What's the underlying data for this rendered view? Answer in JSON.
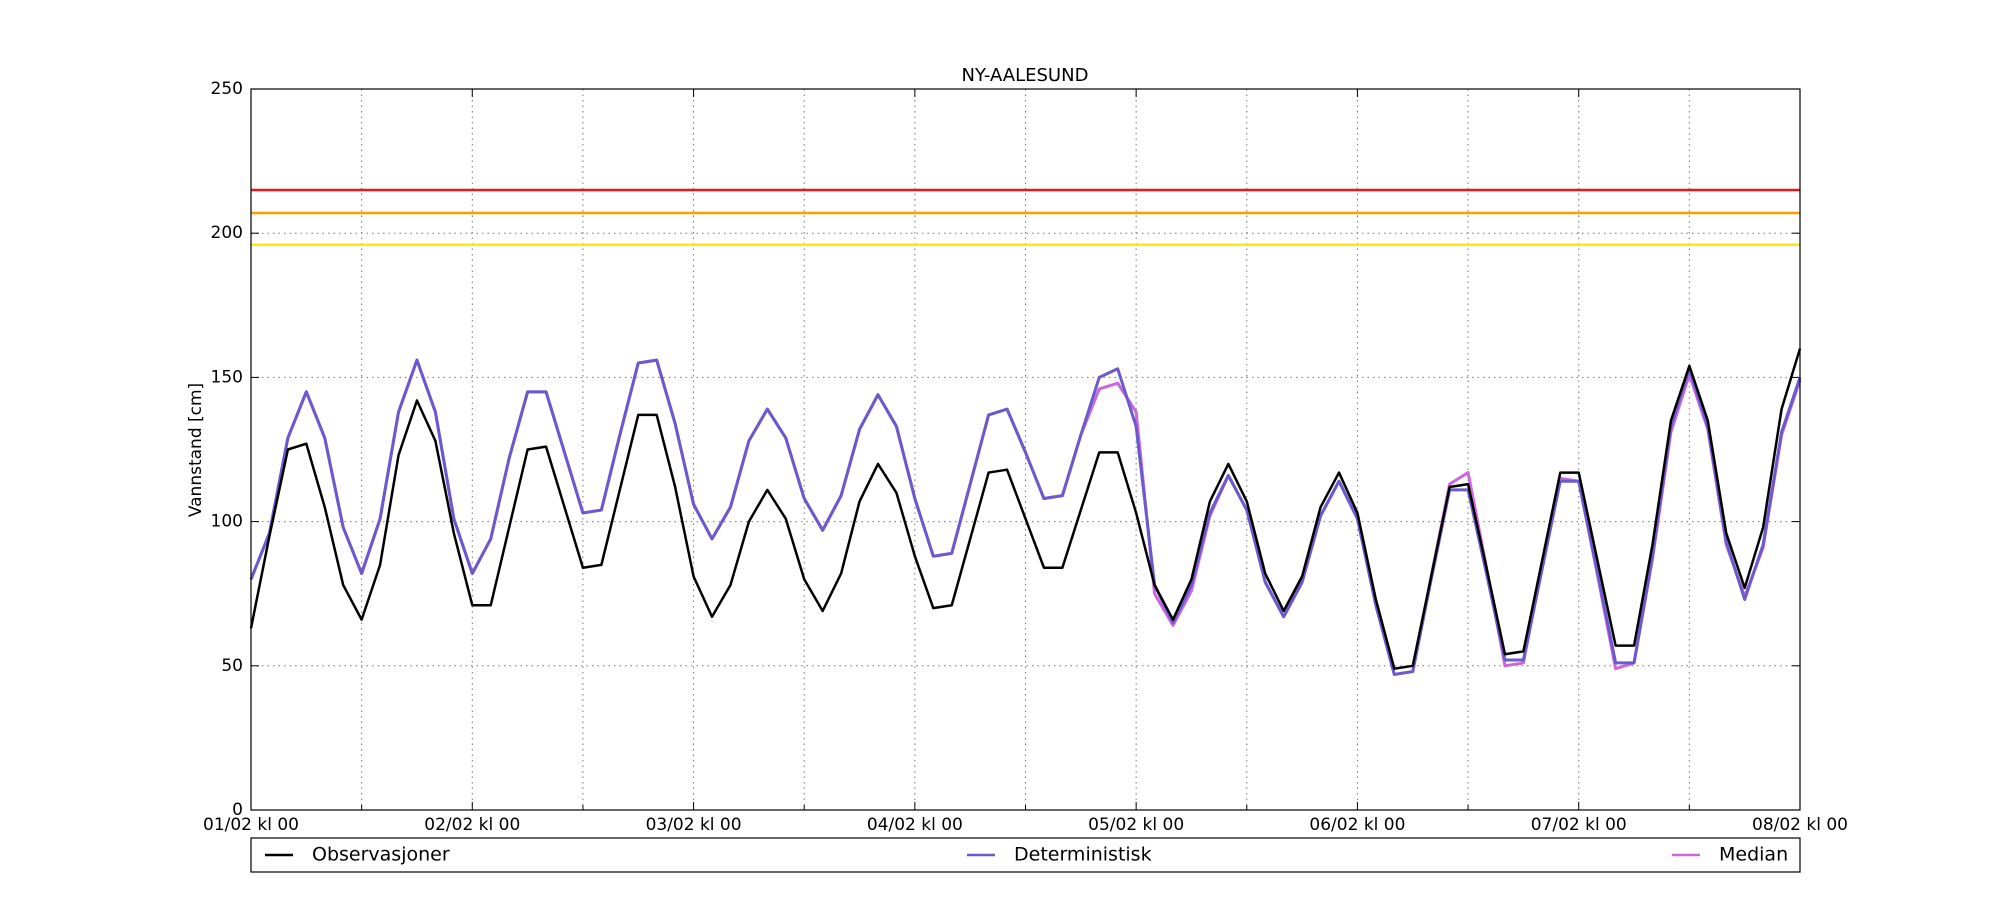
{
  "chart_data": {
    "type": "line",
    "title": "NY-AALESUND",
    "y_label": "Vannstand [cm]",
    "x": [
      0,
      2,
      4,
      6,
      8,
      10,
      12,
      14,
      16,
      18,
      20,
      22,
      24,
      26,
      28,
      30,
      32,
      34,
      36,
      38,
      40,
      42,
      44,
      46,
      48,
      50,
      52,
      54,
      56,
      58,
      60,
      62,
      64,
      66,
      68,
      70,
      72,
      74,
      76,
      78,
      80,
      82,
      84,
      86,
      88,
      90,
      92,
      94,
      96,
      98,
      100,
      102,
      104,
      106,
      108,
      110,
      112,
      114,
      116,
      118,
      120,
      122,
      124,
      126,
      128,
      130,
      132,
      134,
      136,
      138,
      140,
      142,
      144,
      146,
      148,
      150,
      152,
      154,
      156,
      158,
      160,
      162,
      164,
      166,
      168
    ],
    "xlim": [
      0,
      168
    ],
    "xticks": [
      {
        "value": 0,
        "label": "01/02 kl 00"
      },
      {
        "value": 24,
        "label": "02/02 kl 00"
      },
      {
        "value": 48,
        "label": "03/02 kl 00"
      },
      {
        "value": 72,
        "label": "04/02 kl 00"
      },
      {
        "value": 96,
        "label": "05/02 kl 00"
      },
      {
        "value": 120,
        "label": "06/02 kl 00"
      },
      {
        "value": 144,
        "label": "07/02 kl 00"
      },
      {
        "value": 168,
        "label": "08/02 kl 00"
      }
    ],
    "xminor": [
      12,
      36,
      60,
      84,
      108,
      132,
      156
    ],
    "ylim": [
      0,
      250
    ],
    "yticks": [
      0,
      50,
      100,
      150,
      200,
      250
    ],
    "grid": true,
    "legend": "below",
    "reference_lines": [
      {
        "value": 215,
        "color": "#e8191c"
      },
      {
        "value": 207,
        "color": "#f5a000"
      },
      {
        "value": 196,
        "color": "#f5f000"
      }
    ],
    "series": [
      {
        "name": "Observasjoner",
        "color": "#000000",
        "values": [
          63,
          95,
          125,
          127,
          105,
          78,
          66,
          85,
          123,
          142,
          128,
          96,
          71,
          71,
          98,
          125,
          126,
          105,
          84,
          85,
          111,
          137,
          137,
          112,
          81,
          67,
          78,
          100,
          111,
          101,
          80,
          69,
          82,
          107,
          120,
          110,
          88,
          70,
          71,
          94,
          117,
          118,
          101,
          84,
          84,
          104,
          124,
          124,
          103,
          78,
          66,
          80,
          107,
          120,
          107,
          82,
          69,
          81,
          105,
          117,
          103,
          73,
          49,
          50,
          81,
          112,
          113,
          84,
          54,
          55,
          86,
          117,
          117,
          87,
          57,
          57,
          92,
          135,
          154,
          135,
          96,
          77,
          98,
          139,
          160
        ]
      },
      {
        "name": "Deterministisk",
        "color": "#6a5acd",
        "values": [
          80,
          96,
          129,
          145,
          129,
          98,
          82,
          101,
          138,
          156,
          138,
          101,
          82,
          94,
          122,
          145,
          145,
          124,
          103,
          104,
          130,
          155,
          156,
          134,
          106,
          94,
          105,
          128,
          139,
          129,
          108,
          97,
          109,
          132,
          144,
          133,
          108,
          88,
          89,
          113,
          137,
          139,
          124,
          108,
          109,
          130,
          150,
          153,
          133,
          78,
          65,
          78,
          103,
          116,
          104,
          79,
          67,
          79,
          102,
          114,
          101,
          71,
          47,
          48,
          80,
          111,
          111,
          82,
          52,
          52,
          83,
          114,
          114,
          83,
          51,
          51,
          88,
          133,
          153,
          133,
          93,
          73,
          92,
          131,
          150
        ]
      },
      {
        "name": "Median",
        "color": "#cc66dd",
        "values": [
          80,
          96,
          129,
          145,
          129,
          98,
          82,
          101,
          138,
          156,
          138,
          101,
          82,
          94,
          122,
          145,
          145,
          124,
          103,
          104,
          130,
          155,
          156,
          134,
          106,
          94,
          105,
          128,
          139,
          129,
          108,
          97,
          109,
          132,
          144,
          133,
          108,
          88,
          89,
          113,
          137,
          139,
          124,
          108,
          109,
          130,
          146,
          148,
          138,
          75,
          64,
          76,
          102,
          116,
          104,
          79,
          67,
          79,
          102,
          114,
          101,
          71,
          47,
          48,
          81,
          113,
          117,
          84,
          50,
          51,
          84,
          115,
          114,
          82,
          49,
          51,
          87,
          131,
          151,
          132,
          92,
          74,
          91,
          130,
          149
        ]
      }
    ]
  }
}
